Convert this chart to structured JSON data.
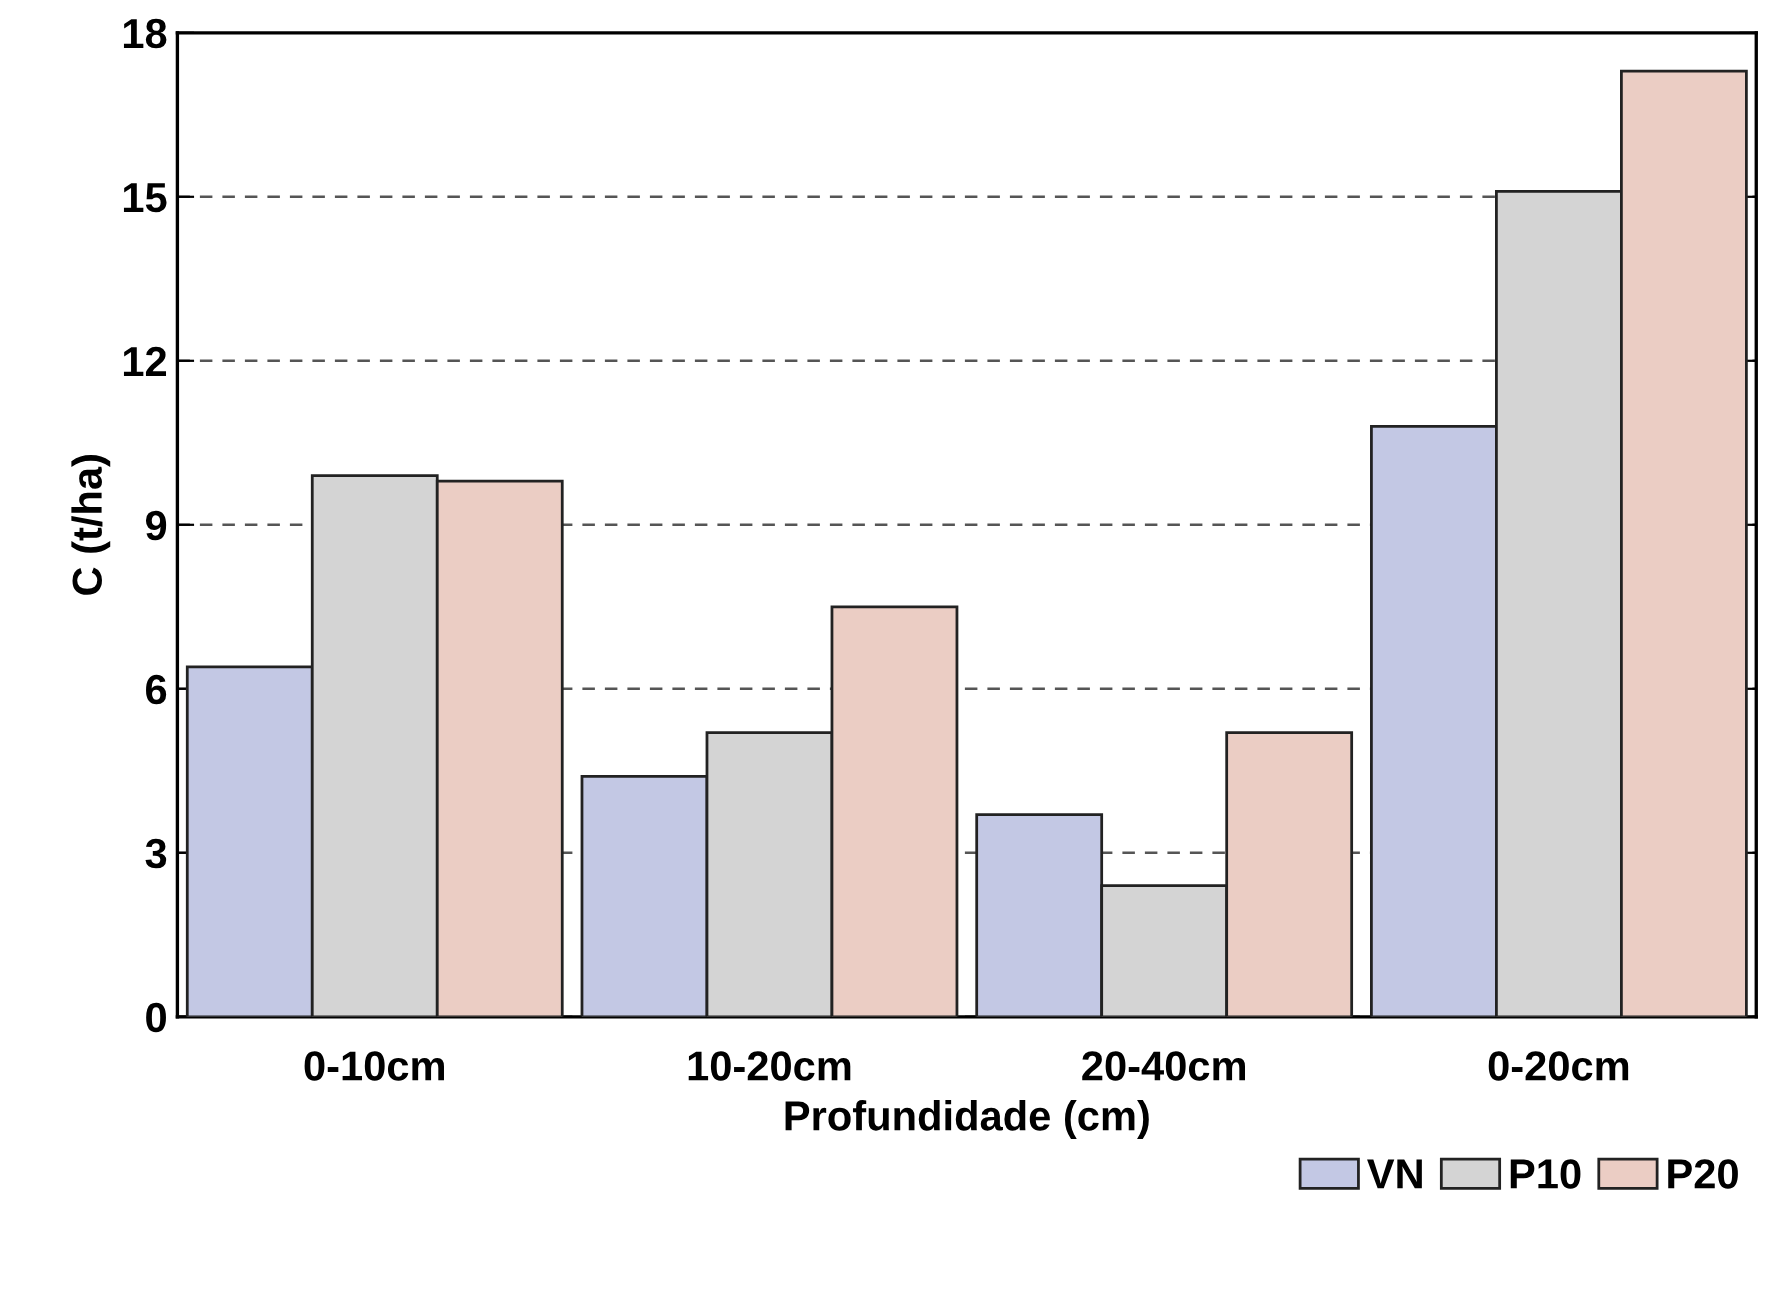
{
  "chart_data": {
    "type": "bar",
    "xlabel": "Profundidade (cm)",
    "ylabel": "C (t/ha)",
    "categories": [
      "0-10cm",
      "10-20cm",
      "20-40cm",
      "0-20cm"
    ],
    "series": [
      {
        "name": "VN",
        "color": "#c3c8e4",
        "values": [
          6.4,
          4.4,
          3.7,
          10.8
        ]
      },
      {
        "name": "P10",
        "color": "#d4d4d4",
        "values": [
          9.9,
          5.2,
          2.4,
          15.1
        ]
      },
      {
        "name": "P20",
        "color": "#ebcdc4",
        "values": [
          9.8,
          7.5,
          5.2,
          17.3
        ]
      }
    ],
    "ylim": [
      0,
      18
    ],
    "yticks": [
      0,
      3,
      6,
      9,
      12,
      15,
      18
    ],
    "grid": "y",
    "legend": "bottom right"
  }
}
